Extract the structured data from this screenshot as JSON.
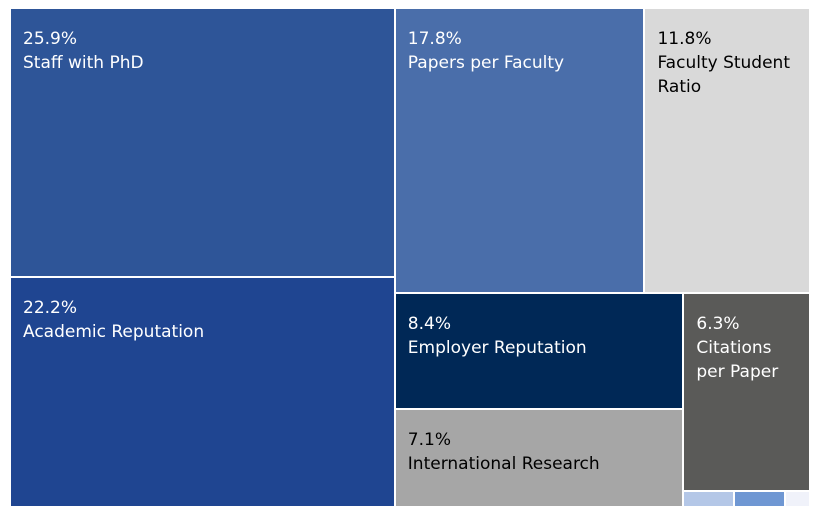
{
  "chart_data": {
    "type": "treemap",
    "categories": [
      "Staff with PhD",
      "Papers per Faculty",
      "Faculty Student Ratio",
      "Academic Reputation",
      "Employer Reputation",
      "Citations per Paper",
      "International Research",
      null,
      null,
      null
    ],
    "values": [
      25.9,
      17.8,
      11.8,
      22.2,
      8.4,
      6.3,
      7.1,
      0.2,
      0.2,
      0.1
    ],
    "value_labels": [
      "25.9%",
      "17.8%",
      "11.8%",
      "22.2%",
      "8.4%",
      "6.3%",
      "7.1%",
      null,
      null,
      null
    ],
    "colors": [
      "#2e5598",
      "#4a6eaa",
      "#d9d9d9",
      "#1f4591",
      "#002856",
      "#5a5a58",
      "#a6a6a6",
      "#b4c7e7",
      "#6f97d3",
      "#f0f2fa"
    ]
  }
}
